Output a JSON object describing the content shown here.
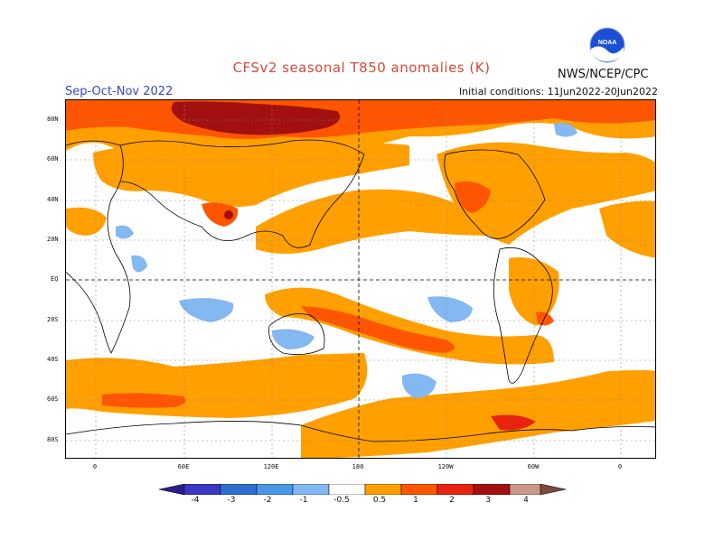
{
  "title": "CFSv2 seasonal T850 anomalies (K)",
  "period": "Sep-Oct-Nov 2022",
  "initial_conditions": "Initial conditions: 11Jun2022-20Jun2022",
  "agency": "NWS/NCEP/CPC",
  "logo_text": "NOAA",
  "lat_labels": [
    "80N",
    "60N",
    "40N",
    "20N",
    "EQ",
    "20S",
    "40S",
    "60S",
    "80S"
  ],
  "lon_labels": [
    "0",
    "60E",
    "120E",
    "180",
    "120W",
    "60W",
    "0"
  ],
  "colorbar": {
    "labels": [
      "-4",
      "-3",
      "-2",
      "-1",
      "-0.5",
      "0.5",
      "1",
      "2",
      "3",
      "4"
    ],
    "colors": {
      "lt_-4": "#2a1e8c",
      "-4_-3": "#3a38c0",
      "-3_-2": "#2e6fd0",
      "-2_-1": "#4b96e8",
      "-1_-0.5": "#83b8f2",
      "-0.5_0.5": "#ffffff",
      "0.5_1": "#ffa000",
      "1_2": "#ff5500",
      "2_3": "#e82410",
      "3_4": "#a31010",
      "4_5": "#c99688",
      "gt_5": "#7a4a40"
    }
  }
}
